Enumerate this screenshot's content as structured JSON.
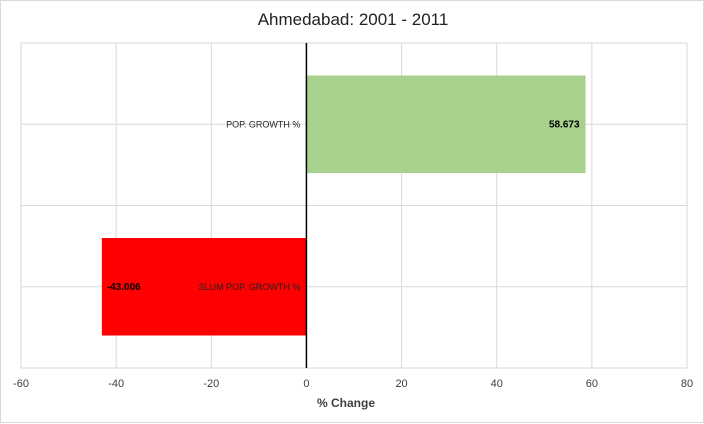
{
  "chart_data": {
    "type": "bar",
    "orientation": "horizontal",
    "title": "Ahmedabad: 2001 - 2011",
    "xlabel": "% Change",
    "ylabel": "",
    "categories": [
      "POP. GROWTH %",
      "SLUM POP. GROWTH %"
    ],
    "values": [
      58.673,
      -43.006
    ],
    "data_labels": [
      "58.673",
      "-43.006"
    ],
    "colors": [
      "#a9d18e",
      "#ff0000"
    ],
    "xlim": [
      -60,
      80
    ],
    "xticks": [
      -60,
      -40,
      -20,
      0,
      20,
      40,
      60,
      80
    ],
    "grid": true,
    "legend": "none"
  }
}
